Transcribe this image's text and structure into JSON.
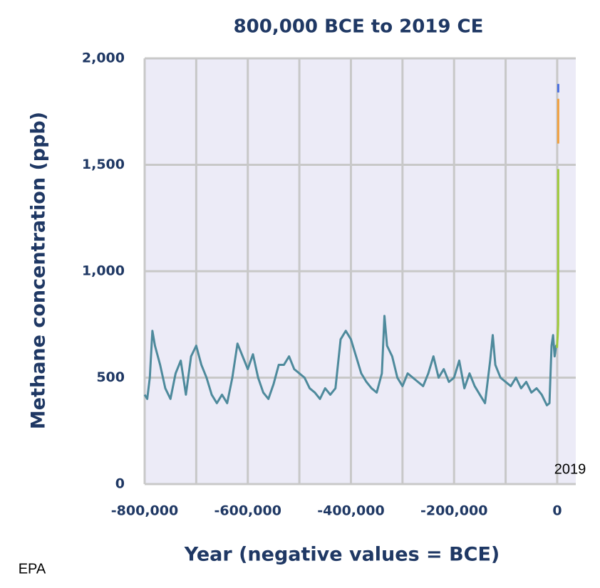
{
  "chart_data": {
    "type": "line",
    "title": "800,000 BCE to 2019 CE",
    "x_label": "Year (negative values = BCE)",
    "y_label": "Methane concentration (ppb)",
    "annotation": "2019",
    "source": "EPA",
    "xlim": [
      -800000,
      36000
    ],
    "ylim": [
      0,
      2000
    ],
    "xticks": [
      {
        "value": -800000,
        "label": "-800,000"
      },
      {
        "value": -600000,
        "label": "-600,000"
      },
      {
        "value": -400000,
        "label": "-400,000"
      },
      {
        "value": -200000,
        "label": "-200,000"
      },
      0
    ],
    "xminor_ticks": [
      -700000,
      -500000,
      -300000,
      -100000
    ],
    "yticks": [
      0,
      500,
      {
        "value": 1000,
        "label": "1,000"
      },
      {
        "value": 1500,
        "label": "1,500"
      },
      {
        "value": 2000,
        "label": "2,000"
      }
    ],
    "grid": true,
    "series": [
      {
        "color": "#4e8a9c",
        "x": [
          -800000,
          -795000,
          -790000,
          -785000,
          -780000,
          -770000,
          -760000,
          -750000,
          -740000,
          -730000,
          -720000,
          -710000,
          -700000,
          -690000,
          -680000,
          -670000,
          -660000,
          -650000,
          -640000,
          -630000,
          -620000,
          -610000,
          -600000,
          -590000,
          -580000,
          -570000,
          -560000,
          -550000,
          -540000,
          -530000,
          -520000,
          -510000,
          -500000,
          -490000,
          -480000,
          -470000,
          -460000,
          -450000,
          -440000,
          -430000,
          -420000,
          -410000,
          -400000,
          -390000,
          -380000,
          -370000,
          -360000,
          -350000,
          -340000,
          -335000,
          -330000,
          -320000,
          -310000,
          -300000,
          -290000,
          -280000,
          -270000,
          -260000,
          -250000,
          -240000,
          -230000,
          -220000,
          -210000,
          -200000,
          -190000,
          -180000,
          -170000,
          -160000,
          -150000,
          -140000,
          -130000,
          -125000,
          -120000,
          -110000,
          -100000,
          -90000,
          -80000,
          -70000,
          -60000,
          -50000,
          -40000,
          -30000,
          -20000,
          -15000,
          -11000,
          -8000,
          -5000,
          -2000,
          -500
        ],
        "values": [
          420,
          400,
          500,
          720,
          650,
          560,
          450,
          400,
          520,
          580,
          420,
          600,
          650,
          560,
          500,
          420,
          380,
          420,
          380,
          500,
          660,
          600,
          540,
          610,
          500,
          430,
          400,
          470,
          560,
          560,
          600,
          540,
          520,
          500,
          450,
          430,
          400,
          450,
          420,
          450,
          680,
          720,
          680,
          600,
          520,
          480,
          450,
          430,
          520,
          790,
          650,
          600,
          500,
          460,
          520,
          500,
          480,
          460,
          520,
          600,
          500,
          540,
          480,
          500,
          580,
          450,
          520,
          460,
          420,
          380,
          580,
          700,
          560,
          500,
          480,
          460,
          500,
          450,
          480,
          430,
          450,
          420,
          370,
          380,
          650,
          700,
          600,
          650,
          640
        ]
      },
      {
        "color": "#9ec93a",
        "x": [
          -500,
          1000,
          1800,
          1900,
          1950
        ],
        "values": [
          640,
          700,
          750,
          1000,
          1480
        ]
      },
      {
        "color": "#f0a040",
        "x": [
          1980,
          1990,
          2000,
          2010
        ],
        "values": [
          1600,
          1700,
          1750,
          1810
        ]
      },
      {
        "color": "#4a6fe0",
        "x": [
          2012,
          2015,
          2019
        ],
        "values": [
          1840,
          1860,
          1880
        ]
      }
    ]
  }
}
